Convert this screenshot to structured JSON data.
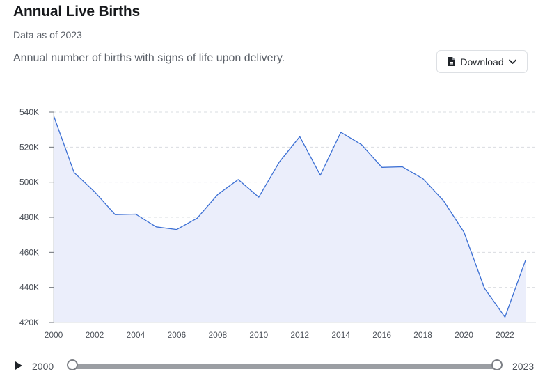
{
  "header": {
    "title": "Annual Live Births",
    "subtitle": "Data as of 2023",
    "description": "Annual number of births with signs of life upon delivery.",
    "download_label": "Download"
  },
  "icons": {
    "download": "document-icon",
    "dropdown": "chevron-down-icon",
    "play": "play-icon"
  },
  "colors": {
    "line": "#3b6fd4",
    "area": "#ebeefb",
    "grid": "#d9dce1"
  },
  "chart_data": {
    "type": "area",
    "title": "Annual Live Births",
    "xlabel": "",
    "ylabel": "",
    "x": [
      2000,
      2001,
      2002,
      2003,
      2004,
      2005,
      2006,
      2007,
      2008,
      2009,
      2010,
      2011,
      2012,
      2013,
      2014,
      2015,
      2016,
      2017,
      2018,
      2019,
      2020,
      2021,
      2022,
      2023
    ],
    "values": [
      538000,
      505500,
      494500,
      481500,
      481800,
      474500,
      473000,
      479500,
      493000,
      501500,
      491500,
      511500,
      526000,
      504000,
      528500,
      521500,
      508500,
      508800,
      502000,
      489500,
      471500,
      439500,
      423000,
      455500
    ],
    "ylim": [
      420000,
      540000
    ],
    "xlim": [
      2000,
      2023
    ],
    "y_ticks": [
      420000,
      440000,
      460000,
      480000,
      500000,
      520000,
      540000
    ],
    "y_tick_labels": [
      "420K",
      "440K",
      "460K",
      "480K",
      "500K",
      "520K",
      "540K"
    ],
    "x_ticks": [
      2000,
      2002,
      2004,
      2006,
      2008,
      2010,
      2012,
      2014,
      2016,
      2018,
      2020,
      2022
    ],
    "x_tick_labels": [
      "2000",
      "2002",
      "2004",
      "2006",
      "2008",
      "2010",
      "2012",
      "2014",
      "2016",
      "2018",
      "2020",
      "2022"
    ],
    "grid": true,
    "legend": "none"
  },
  "slider": {
    "start_label": "2000",
    "end_label": "2023",
    "start_value": 2000,
    "end_value": 2023
  }
}
